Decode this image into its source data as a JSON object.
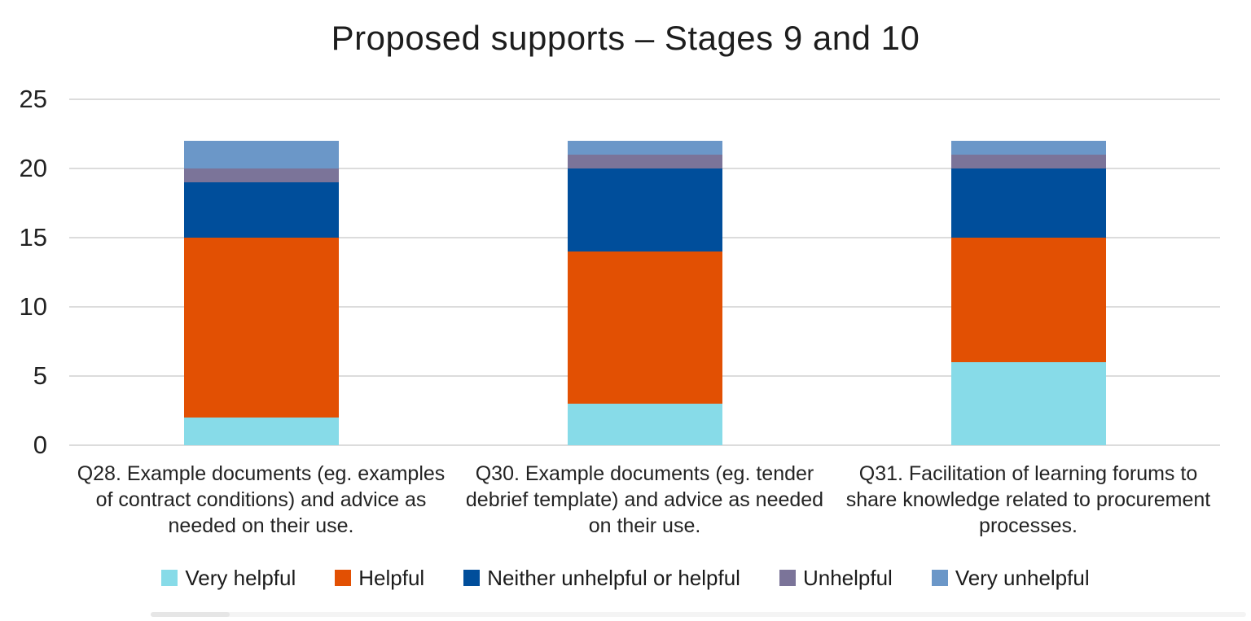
{
  "title": "Proposed supports – Stages 9 and 10",
  "colors": {
    "background": "#FFFFFF",
    "grid": "#DCDCDC",
    "text": "#222222"
  },
  "chart_data": {
    "type": "bar",
    "stacked": true,
    "title": "Proposed supports – Stages 9 and 10",
    "categories": [
      "Q28. Example documents (eg. examples of contract conditions) and advice as needed on their use.",
      "Q30. Example documents (eg. tender debrief template) and advice as needed on their use.",
      "Q31. Facilitation of learning forums to share knowledge related to procurement processes."
    ],
    "series": [
      {
        "name": "Very helpful",
        "color": "#87DBE8",
        "values": [
          2,
          3,
          6
        ]
      },
      {
        "name": "Helpful",
        "color": "#E25003",
        "values": [
          13,
          11,
          9
        ]
      },
      {
        "name": "Neither unhelpful or helpful",
        "color": "#004E9B",
        "values": [
          4,
          6,
          5
        ]
      },
      {
        "name": "Unhelpful",
        "color": "#7B7499",
        "values": [
          1,
          1,
          1
        ]
      },
      {
        "name": "Very unhelpful",
        "color": "#6B97C8",
        "values": [
          2,
          1,
          1
        ]
      }
    ],
    "totals": [
      22,
      22,
      22
    ],
    "xlabel": "",
    "ylabel": "",
    "ylim": [
      0,
      25
    ],
    "yticks": [
      0,
      5,
      10,
      15,
      20,
      25
    ],
    "grid": true,
    "legend_position": "bottom"
  }
}
